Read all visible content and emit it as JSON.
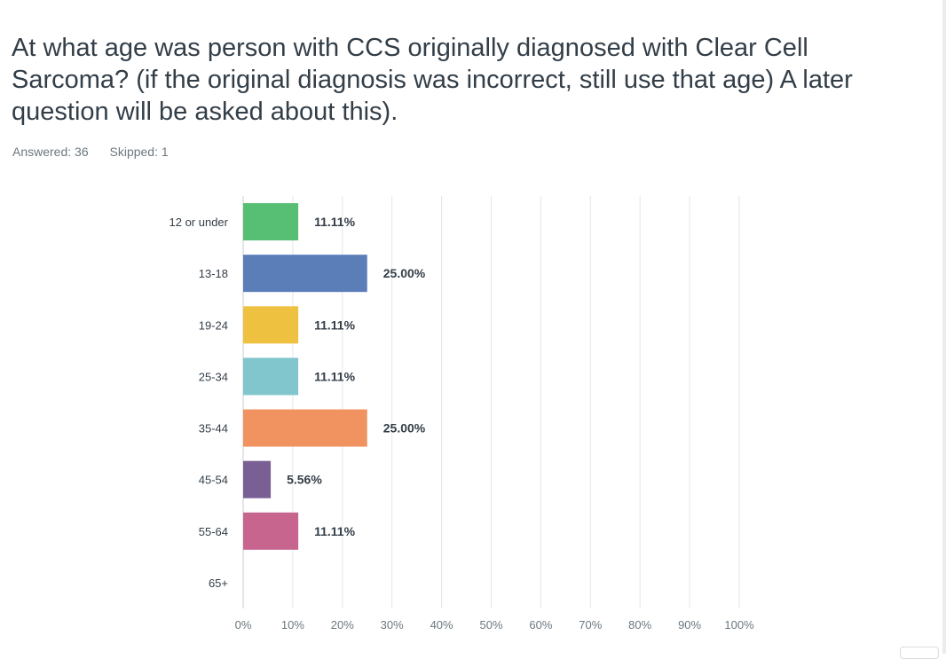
{
  "question": {
    "title": "At what age was person with CCS originally diagnosed with Clear Cell Sarcoma? (if the original diagnosis was incorrect, still use that age) A later question will be asked about this)."
  },
  "stats": {
    "answered": "Answered: 36",
    "skipped": "Skipped: 1"
  },
  "chart_data": {
    "type": "bar",
    "orientation": "horizontal",
    "categories": [
      "12 or under",
      "13-18",
      "19-24",
      "25-34",
      "35-44",
      "45-54",
      "55-64",
      "65+"
    ],
    "values": [
      11.11,
      25.0,
      11.11,
      11.11,
      25.0,
      5.56,
      11.11,
      0
    ],
    "value_labels": [
      "11.11%",
      "25.00%",
      "11.11%",
      "11.11%",
      "25.00%",
      "5.56%",
      "11.11%",
      ""
    ],
    "colors": [
      "#57bf73",
      "#5b7db8",
      "#efc140",
      "#80c6cc",
      "#f09360",
      "#7a5f94",
      "#c7658f",
      "#999999"
    ],
    "xlim": [
      0,
      100
    ],
    "x_ticks": [
      "0%",
      "10%",
      "20%",
      "30%",
      "40%",
      "50%",
      "60%",
      "70%",
      "80%",
      "90%",
      "100%"
    ],
    "grid": true,
    "xlabel": "",
    "ylabel": ""
  }
}
